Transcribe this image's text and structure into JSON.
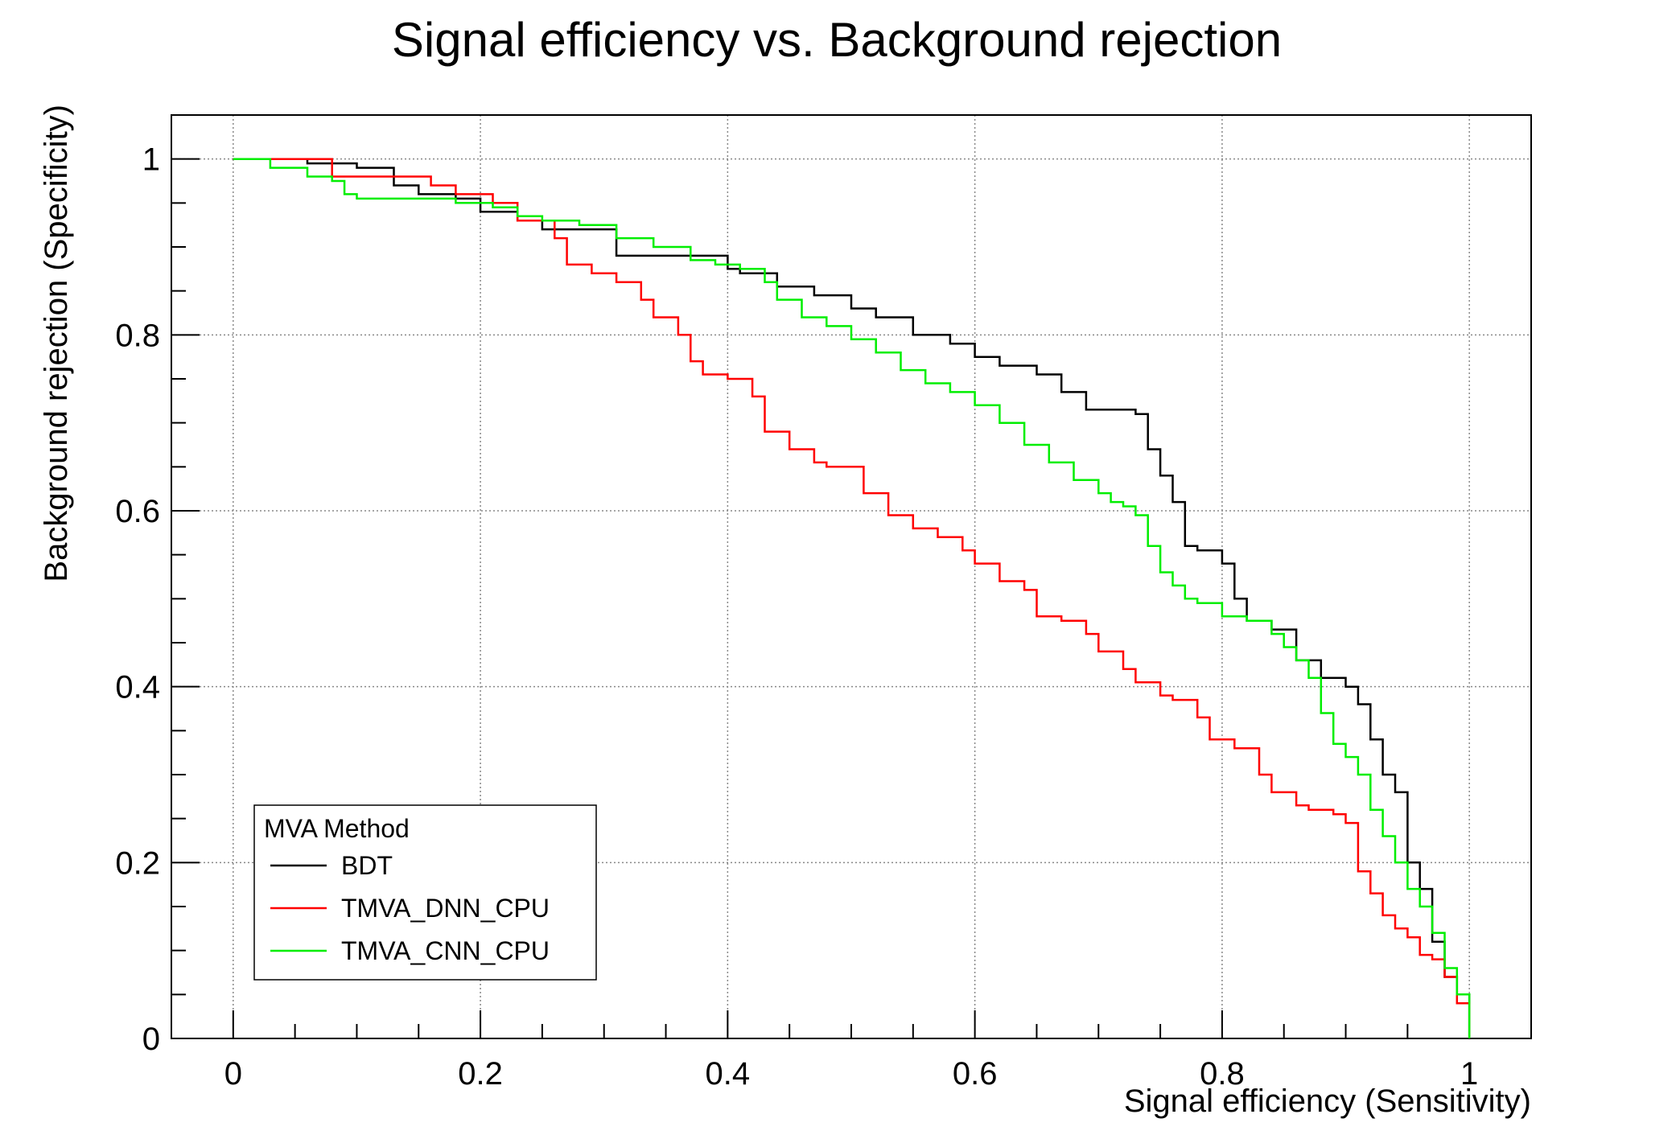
{
  "chart_data": {
    "type": "line",
    "title": "Signal efficiency vs. Background rejection",
    "xlabel": "Signal efficiency (Sensitivity)",
    "ylabel": "Background rejection (Specificity)",
    "xlim": [
      -0.05,
      1.05
    ],
    "ylim": [
      0,
      1.05
    ],
    "x_ticks": [
      "0",
      "0.2",
      "0.4",
      "0.6",
      "0.8",
      "1"
    ],
    "y_ticks": [
      "0",
      "0.2",
      "0.4",
      "0.6",
      "0.8",
      "1"
    ],
    "grid": true,
    "legend": {
      "title": "MVA Method",
      "placement": "bottom-left"
    },
    "series": [
      {
        "name": "BDT",
        "color": "#000000",
        "x": [
          0.0,
          0.06,
          0.1,
          0.13,
          0.15,
          0.18,
          0.2,
          0.23,
          0.25,
          0.28,
          0.31,
          0.32,
          0.35,
          0.4,
          0.41,
          0.44,
          0.47,
          0.5,
          0.52,
          0.55,
          0.58,
          0.6,
          0.62,
          0.65,
          0.67,
          0.69,
          0.71,
          0.73,
          0.74,
          0.75,
          0.76,
          0.77,
          0.78,
          0.8,
          0.81,
          0.82,
          0.84,
          0.86,
          0.88,
          0.9,
          0.91,
          0.92,
          0.93,
          0.94,
          0.95,
          0.96,
          0.97,
          0.98,
          0.99,
          1.0
        ],
        "values": [
          1.0,
          0.995,
          0.99,
          0.97,
          0.96,
          0.955,
          0.94,
          0.93,
          0.92,
          0.92,
          0.89,
          0.89,
          0.89,
          0.875,
          0.87,
          0.855,
          0.845,
          0.83,
          0.82,
          0.8,
          0.79,
          0.775,
          0.765,
          0.755,
          0.735,
          0.715,
          0.715,
          0.71,
          0.67,
          0.64,
          0.61,
          0.56,
          0.555,
          0.54,
          0.5,
          0.475,
          0.465,
          0.43,
          0.41,
          0.4,
          0.38,
          0.34,
          0.3,
          0.28,
          0.2,
          0.17,
          0.11,
          0.07,
          0.05,
          0.0
        ]
      },
      {
        "name": "TMVA_DNN_CPU",
        "color": "#ff0000",
        "x": [
          0.0,
          0.08,
          0.13,
          0.16,
          0.18,
          0.21,
          0.23,
          0.26,
          0.27,
          0.29,
          0.31,
          0.33,
          0.34,
          0.36,
          0.37,
          0.38,
          0.4,
          0.42,
          0.43,
          0.45,
          0.47,
          0.48,
          0.51,
          0.53,
          0.55,
          0.57,
          0.59,
          0.6,
          0.62,
          0.64,
          0.65,
          0.67,
          0.69,
          0.7,
          0.72,
          0.73,
          0.75,
          0.76,
          0.78,
          0.79,
          0.81,
          0.83,
          0.84,
          0.86,
          0.87,
          0.89,
          0.9,
          0.91,
          0.92,
          0.93,
          0.94,
          0.95,
          0.96,
          0.97,
          0.98,
          0.99,
          1.0
        ],
        "values": [
          1.0,
          0.98,
          0.98,
          0.97,
          0.96,
          0.95,
          0.93,
          0.91,
          0.88,
          0.87,
          0.86,
          0.84,
          0.82,
          0.8,
          0.77,
          0.755,
          0.75,
          0.73,
          0.69,
          0.67,
          0.655,
          0.65,
          0.62,
          0.595,
          0.58,
          0.57,
          0.555,
          0.54,
          0.52,
          0.51,
          0.48,
          0.475,
          0.46,
          0.44,
          0.42,
          0.405,
          0.39,
          0.385,
          0.365,
          0.34,
          0.33,
          0.3,
          0.28,
          0.265,
          0.26,
          0.255,
          0.245,
          0.19,
          0.165,
          0.14,
          0.125,
          0.115,
          0.095,
          0.09,
          0.07,
          0.04,
          0.0
        ]
      },
      {
        "name": "TMVA_CNN_CPU",
        "color": "#00ee00",
        "x": [
          0.0,
          0.03,
          0.06,
          0.08,
          0.09,
          0.1,
          0.15,
          0.18,
          0.21,
          0.23,
          0.25,
          0.28,
          0.31,
          0.34,
          0.37,
          0.39,
          0.41,
          0.43,
          0.44,
          0.46,
          0.48,
          0.5,
          0.52,
          0.54,
          0.56,
          0.58,
          0.6,
          0.62,
          0.64,
          0.66,
          0.68,
          0.7,
          0.71,
          0.72,
          0.73,
          0.74,
          0.75,
          0.76,
          0.77,
          0.78,
          0.8,
          0.82,
          0.84,
          0.85,
          0.86,
          0.87,
          0.88,
          0.89,
          0.9,
          0.91,
          0.92,
          0.93,
          0.94,
          0.95,
          0.96,
          0.97,
          0.98,
          0.99,
          1.0
        ],
        "values": [
          1.0,
          0.99,
          0.98,
          0.975,
          0.96,
          0.955,
          0.955,
          0.95,
          0.945,
          0.935,
          0.93,
          0.925,
          0.91,
          0.9,
          0.885,
          0.88,
          0.875,
          0.86,
          0.84,
          0.82,
          0.81,
          0.795,
          0.78,
          0.76,
          0.745,
          0.735,
          0.72,
          0.7,
          0.675,
          0.655,
          0.635,
          0.62,
          0.61,
          0.605,
          0.595,
          0.56,
          0.53,
          0.515,
          0.5,
          0.495,
          0.48,
          0.475,
          0.46,
          0.445,
          0.43,
          0.41,
          0.37,
          0.335,
          0.32,
          0.3,
          0.26,
          0.23,
          0.2,
          0.17,
          0.15,
          0.12,
          0.08,
          0.05,
          0.0
        ]
      }
    ]
  }
}
